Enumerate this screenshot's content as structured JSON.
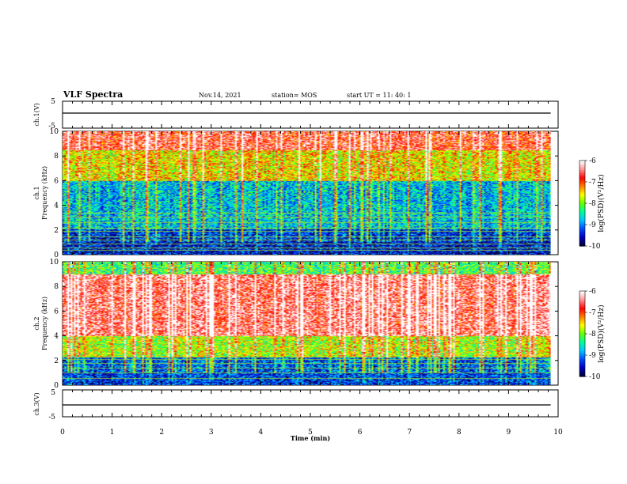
{
  "header": {
    "title": "VLF Spectra",
    "date": "Nov.14, 2021",
    "station": "station= MOS",
    "start": "start  UT =   11: 40: 1"
  },
  "colors": {
    "spectrogram_scale": [
      "#000040",
      "#0000c8",
      "#0050ff",
      "#00c8ff",
      "#00ff96",
      "#64ff00",
      "#ffff00",
      "#ff8000",
      "#ff0000",
      "#ff9090",
      "#ffffff"
    ],
    "trace": "#000000",
    "line_interference": "#9fe02a"
  },
  "chart_data": [
    {
      "type": "line",
      "panel": "ch.1 waveform",
      "ylabel": "ch.1(V)",
      "ylim": [
        -5,
        5
      ],
      "yticks": [
        "5",
        "-5"
      ],
      "xlim": [
        0,
        10
      ],
      "series": [
        {
          "values": [
            0,
            0
          ]
        }
      ]
    },
    {
      "type": "heatmap",
      "panel": "ch.1 spectrogram",
      "ylabel_top": "ch.1",
      "ylabel": "Frequency (kHz)",
      "ylim": [
        0,
        10
      ],
      "yticks": [
        "0",
        "2",
        "4",
        "6",
        "8",
        "10"
      ],
      "xlim": [
        0,
        10
      ],
      "colorbar": {
        "label": "log(PSD)(V²/Hz)",
        "range": [
          -10,
          -6
        ],
        "ticks": [
          "-6",
          "-7",
          "-8",
          "-9",
          "-10"
        ]
      },
      "bands": [
        {
          "freq_khz": [
            8.5,
            10
          ],
          "level": -6.9
        },
        {
          "freq_khz": [
            6,
            8.5
          ],
          "level": -7.8
        },
        {
          "freq_khz": [
            2,
            6
          ],
          "level": -9.0
        },
        {
          "freq_khz": [
            0,
            2
          ],
          "level": -9.6
        }
      ],
      "lines_khz": [
        0.4,
        0.6,
        0.9,
        1.2,
        1.5,
        1.9,
        2.2,
        2.6,
        3.1,
        3.4
      ]
    },
    {
      "type": "heatmap",
      "panel": "ch.2 spectrogram",
      "ylabel_top": "ch.2",
      "ylabel": "Frequency (kHz)",
      "ylim": [
        0,
        10
      ],
      "yticks": [
        "0",
        "2",
        "4",
        "6",
        "8",
        "10"
      ],
      "xlim": [
        0,
        10
      ],
      "colorbar": {
        "label": "log(PSD)(V²/Hz)",
        "range": [
          -10,
          -6
        ],
        "ticks": [
          "-6",
          "-7",
          "-8",
          "-9",
          "-10"
        ]
      },
      "bands": [
        {
          "freq_khz": [
            9,
            10
          ],
          "level": -8.4
        },
        {
          "freq_khz": [
            4,
            9
          ],
          "level": -6.7
        },
        {
          "freq_khz": [
            2.2,
            4
          ],
          "level": -8.0
        },
        {
          "freq_khz": [
            0,
            2.2
          ],
          "level": -9.4
        }
      ],
      "lines_khz": [
        0.6,
        1.0,
        1.4,
        1.8,
        2.1
      ]
    },
    {
      "type": "line",
      "panel": "ch.3 waveform",
      "ylabel": "ch.3(V)",
      "ylim": [
        -5,
        5
      ],
      "yticks": [
        "5",
        "-5"
      ],
      "xlim": [
        0,
        10
      ],
      "series": [
        {
          "values": [
            0,
            0
          ]
        }
      ]
    }
  ],
  "xaxis": {
    "label": "Time (min)",
    "ticks": [
      "0",
      "1",
      "2",
      "3",
      "4",
      "5",
      "6",
      "7",
      "8",
      "9",
      "10"
    ],
    "data_end_min": 9.85
  }
}
